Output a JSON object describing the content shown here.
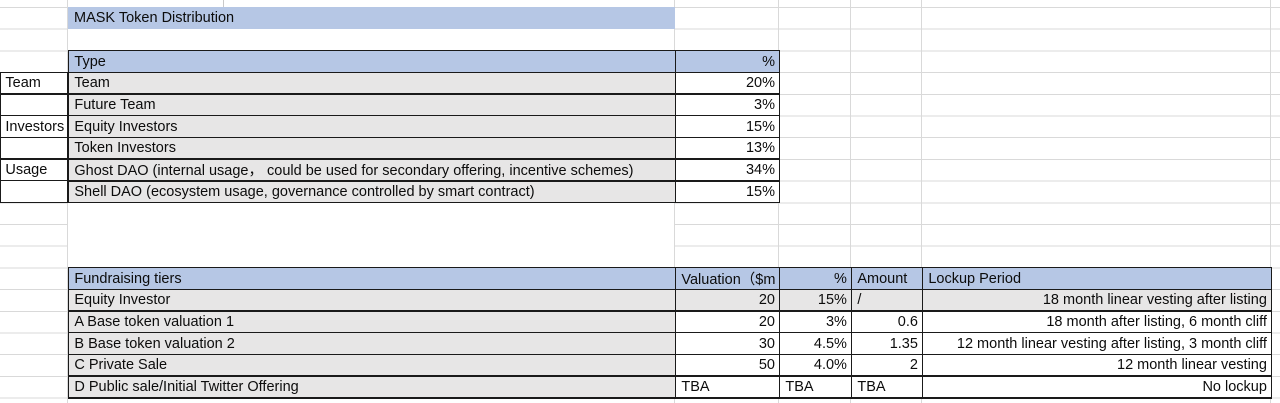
{
  "title": "MASK Token Distribution",
  "distribution_table": {
    "headers": {
      "type": "Type",
      "pct": "%"
    },
    "rows": [
      {
        "group": "Team",
        "type": "Team",
        "pct": "20%"
      },
      {
        "group": "",
        "type": "Future Team",
        "pct": "3%"
      },
      {
        "group": "Investors",
        "type": "Equity Investors",
        "pct": "15%"
      },
      {
        "group": "",
        "type": "Token Investors",
        "pct": "13%"
      },
      {
        "group": "Usage",
        "type": "Ghost DAO (internal usage， could be used for secondary offering, incentive schemes)",
        "pct": "34%"
      },
      {
        "group": "",
        "type": "Shell DAO (ecosystem usage, governance controlled by smart contract)",
        "pct": "15%"
      }
    ]
  },
  "fundraising_table": {
    "headers": {
      "tier": "Fundraising tiers",
      "valuation": "Valuation（$m",
      "pct": "%",
      "amount": "Amount",
      "lockup": "Lockup Period"
    },
    "rows": [
      {
        "tier": "Equity Investor",
        "valuation": "20",
        "pct": "15%",
        "amount": "/",
        "lockup": "18 month linear vesting after listing"
      },
      {
        "tier": "A Base token valuation 1",
        "valuation": "20",
        "pct": "3%",
        "amount": "0.6",
        "lockup": "18 month after listing, 6 month cliff"
      },
      {
        "tier": "B Base token valuation 2",
        "valuation": "30",
        "pct": "4.5%",
        "amount": "1.35",
        "lockup": "12 month linear vesting after listing, 3 month cliff"
      },
      {
        "tier": "C Private Sale",
        "valuation": "50",
        "pct": "4.0%",
        "amount": "2",
        "lockup": "12 month linear vesting"
      },
      {
        "tier": "D Public sale/Initial Twitter Offering",
        "valuation": "TBA",
        "pct": "TBA",
        "amount": "TBA",
        "lockup": "No lockup"
      }
    ]
  },
  "colors": {
    "header_fill": "#b6c7e5",
    "label_fill": "#e7e6e6",
    "table_border": "#1a1a1a",
    "gridline": "#d9d9d9"
  }
}
